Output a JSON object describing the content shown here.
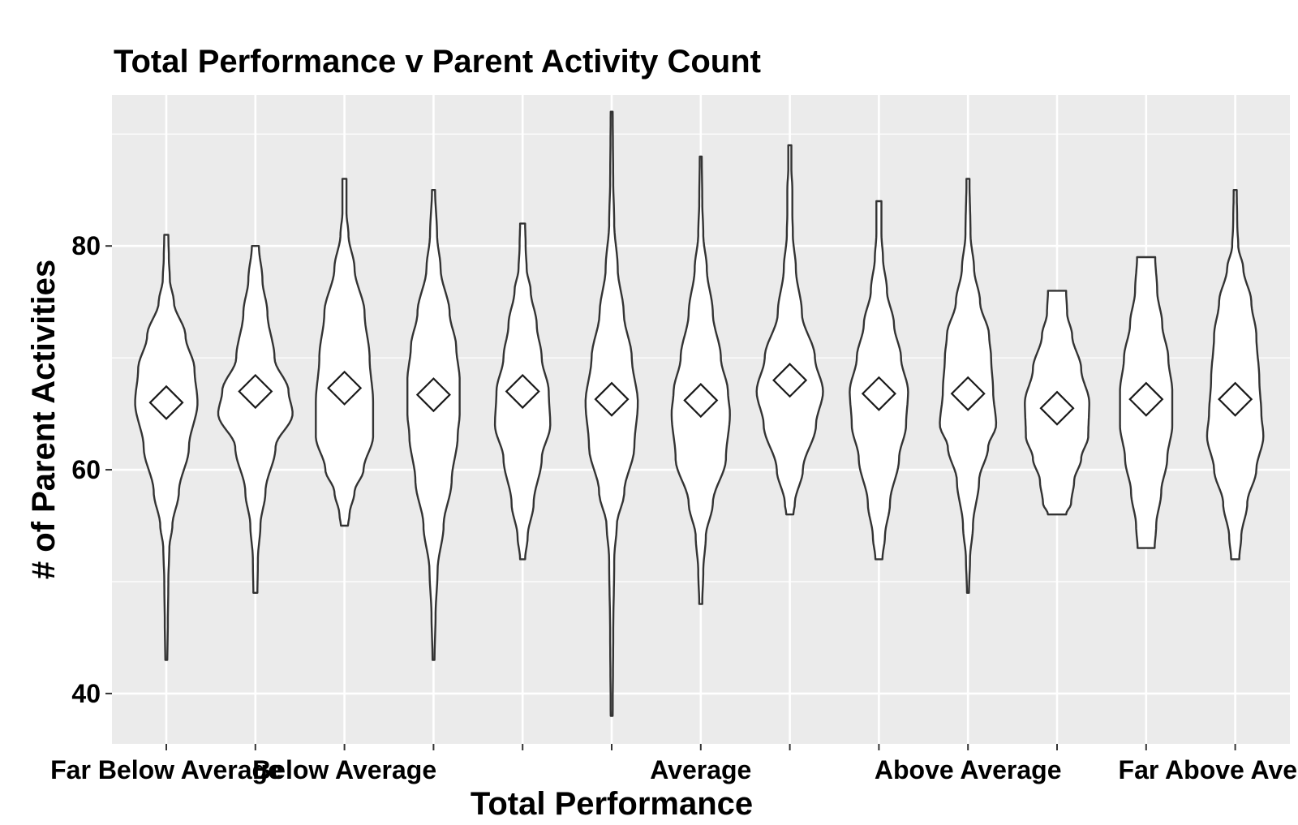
{
  "chart_data": {
    "type": "violin",
    "title": "Total Performance v Parent Activity Count",
    "xlabel": "Total Performance",
    "ylabel": "# of Parent Activities",
    "ylim": [
      35.5,
      93.5
    ],
    "y_ticks": [
      40,
      60,
      80
    ],
    "grid": true,
    "x_tick_labels": [
      "Far Below Average",
      "",
      "Below Average",
      "",
      "",
      "",
      "Average",
      "",
      "",
      "Above Average",
      "",
      "",
      "Far Above Average"
    ],
    "groups": [
      {
        "min": 43,
        "max": 81,
        "mean": 66,
        "profile": [
          [
            43,
            0.02
          ],
          [
            46,
            0.03
          ],
          [
            50,
            0.04
          ],
          [
            53,
            0.06
          ],
          [
            55,
            0.12
          ],
          [
            58,
            0.25
          ],
          [
            62,
            0.45
          ],
          [
            66,
            0.62
          ],
          [
            69,
            0.56
          ],
          [
            72,
            0.38
          ],
          [
            75,
            0.15
          ],
          [
            77,
            0.07
          ],
          [
            79,
            0.05
          ],
          [
            81,
            0.04
          ]
        ]
      },
      {
        "min": 49,
        "max": 80,
        "mean": 67,
        "profile": [
          [
            49,
            0.04
          ],
          [
            52,
            0.05
          ],
          [
            55,
            0.1
          ],
          [
            58,
            0.2
          ],
          [
            62,
            0.4
          ],
          [
            65,
            0.74
          ],
          [
            67,
            0.66
          ],
          [
            70,
            0.38
          ],
          [
            74,
            0.24
          ],
          [
            77,
            0.14
          ],
          [
            80,
            0.07
          ]
        ]
      },
      {
        "min": 55,
        "max": 86,
        "mean": 67.3,
        "profile": [
          [
            55,
            0.07
          ],
          [
            56,
            0.1
          ],
          [
            58,
            0.2
          ],
          [
            60,
            0.38
          ],
          [
            63,
            0.57
          ],
          [
            66,
            0.57
          ],
          [
            70,
            0.5
          ],
          [
            74,
            0.4
          ],
          [
            78,
            0.2
          ],
          [
            81,
            0.08
          ],
          [
            83,
            0.04
          ],
          [
            86,
            0.04
          ]
        ]
      },
      {
        "min": 43,
        "max": 85,
        "mean": 66.7,
        "profile": [
          [
            43,
            0.02
          ],
          [
            47,
            0.04
          ],
          [
            51,
            0.08
          ],
          [
            55,
            0.2
          ],
          [
            59,
            0.36
          ],
          [
            63,
            0.48
          ],
          [
            65,
            0.52
          ],
          [
            68,
            0.52
          ],
          [
            71,
            0.45
          ],
          [
            74,
            0.32
          ],
          [
            78,
            0.14
          ],
          [
            81,
            0.07
          ],
          [
            85,
            0.03
          ]
        ]
      },
      {
        "min": 52,
        "max": 82,
        "mean": 67,
        "profile": [
          [
            52,
            0.05
          ],
          [
            54,
            0.1
          ],
          [
            57,
            0.22
          ],
          [
            61,
            0.38
          ],
          [
            64,
            0.55
          ],
          [
            67,
            0.52
          ],
          [
            70,
            0.38
          ],
          [
            73,
            0.28
          ],
          [
            76,
            0.16
          ],
          [
            78,
            0.08
          ],
          [
            80,
            0.06
          ],
          [
            82,
            0.05
          ]
        ]
      },
      {
        "min": 38,
        "max": 92,
        "mean": 66.3,
        "profile": [
          [
            38,
            0.02
          ],
          [
            45,
            0.03
          ],
          [
            52,
            0.05
          ],
          [
            55,
            0.1
          ],
          [
            58,
            0.25
          ],
          [
            62,
            0.45
          ],
          [
            66,
            0.52
          ],
          [
            70,
            0.4
          ],
          [
            74,
            0.24
          ],
          [
            78,
            0.12
          ],
          [
            82,
            0.05
          ],
          [
            86,
            0.03
          ],
          [
            92,
            0.02
          ]
        ]
      },
      {
        "min": 48,
        "max": 88,
        "mean": 66.2,
        "profile": [
          [
            48,
            0.03
          ],
          [
            51,
            0.05
          ],
          [
            54,
            0.1
          ],
          [
            57,
            0.24
          ],
          [
            61,
            0.5
          ],
          [
            65,
            0.58
          ],
          [
            67,
            0.54
          ],
          [
            70,
            0.4
          ],
          [
            74,
            0.24
          ],
          [
            78,
            0.12
          ],
          [
            81,
            0.05
          ],
          [
            84,
            0.03
          ],
          [
            88,
            0.02
          ]
        ]
      },
      {
        "min": 56,
        "max": 89,
        "mean": 68,
        "profile": [
          [
            56,
            0.07
          ],
          [
            57,
            0.1
          ],
          [
            60,
            0.26
          ],
          [
            64,
            0.52
          ],
          [
            67,
            0.66
          ],
          [
            70,
            0.5
          ],
          [
            74,
            0.24
          ],
          [
            78,
            0.12
          ],
          [
            81,
            0.06
          ],
          [
            83,
            0.05
          ],
          [
            85,
            0.05
          ],
          [
            87,
            0.03
          ],
          [
            89,
            0.03
          ]
        ]
      },
      {
        "min": 52,
        "max": 84,
        "mean": 66.8,
        "profile": [
          [
            52,
            0.07
          ],
          [
            54,
            0.12
          ],
          [
            57,
            0.22
          ],
          [
            61,
            0.4
          ],
          [
            64,
            0.54
          ],
          [
            67,
            0.58
          ],
          [
            70,
            0.44
          ],
          [
            73,
            0.3
          ],
          [
            76,
            0.16
          ],
          [
            79,
            0.08
          ],
          [
            81,
            0.05
          ],
          [
            84,
            0.05
          ]
        ]
      },
      {
        "min": 49,
        "max": 86,
        "mean": 66.8,
        "profile": [
          [
            49,
            0.02
          ],
          [
            52,
            0.04
          ],
          [
            55,
            0.1
          ],
          [
            59,
            0.22
          ],
          [
            62,
            0.4
          ],
          [
            64,
            0.56
          ],
          [
            67,
            0.5
          ],
          [
            70,
            0.46
          ],
          [
            72,
            0.42
          ],
          [
            75,
            0.24
          ],
          [
            78,
            0.12
          ],
          [
            81,
            0.05
          ],
          [
            86,
            0.03
          ]
        ]
      },
      {
        "min": 56,
        "max": 76,
        "mean": 65.5,
        "profile": [
          [
            56,
            0.18
          ],
          [
            57,
            0.28
          ],
          [
            59,
            0.34
          ],
          [
            61,
            0.48
          ],
          [
            63,
            0.62
          ],
          [
            66,
            0.64
          ],
          [
            69,
            0.48
          ],
          [
            72,
            0.3
          ],
          [
            74,
            0.2
          ],
          [
            76,
            0.18
          ]
        ]
      },
      {
        "min": 53,
        "max": 79,
        "mean": 66.3,
        "profile": [
          [
            53,
            0.17
          ],
          [
            55,
            0.2
          ],
          [
            58,
            0.3
          ],
          [
            61,
            0.42
          ],
          [
            64,
            0.52
          ],
          [
            67,
            0.52
          ],
          [
            70,
            0.44
          ],
          [
            73,
            0.32
          ],
          [
            76,
            0.22
          ],
          [
            79,
            0.18
          ]
        ]
      },
      {
        "min": 52,
        "max": 85,
        "mean": 66.3,
        "profile": [
          [
            52,
            0.08
          ],
          [
            54,
            0.12
          ],
          [
            57,
            0.24
          ],
          [
            60,
            0.42
          ],
          [
            63,
            0.56
          ],
          [
            65,
            0.52
          ],
          [
            68,
            0.48
          ],
          [
            72,
            0.42
          ],
          [
            75,
            0.32
          ],
          [
            78,
            0.16
          ],
          [
            80,
            0.06
          ],
          [
            82,
            0.04
          ],
          [
            85,
            0.03
          ]
        ]
      }
    ]
  }
}
